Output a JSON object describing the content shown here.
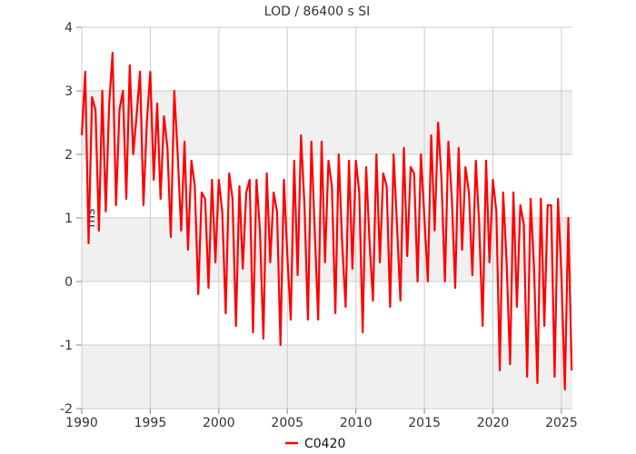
{
  "chart_data": {
    "type": "line",
    "title": "LOD / 86400 s SI",
    "xlabel": "",
    "ylabel": "ms",
    "xlim": [
      1990,
      2025.8
    ],
    "ylim": [
      -2,
      4
    ],
    "xticks": [
      1990,
      1995,
      2000,
      2005,
      2010,
      2015,
      2020,
      2025
    ],
    "yticks": [
      -2,
      -1,
      0,
      1,
      2,
      3,
      4
    ],
    "grid": true,
    "banded_background": true,
    "legend_position": "bottom-center",
    "colors": {
      "series": "#ff0000",
      "band": "#f0f0f0",
      "grid": "#cccccc"
    },
    "series": [
      {
        "name": "C0420",
        "color": "#ff0000",
        "x": [
          1990.0,
          1990.25,
          1990.5,
          1990.75,
          1991.0,
          1991.25,
          1991.5,
          1991.75,
          1992.0,
          1992.25,
          1992.5,
          1992.75,
          1993.0,
          1993.25,
          1993.5,
          1993.75,
          1994.0,
          1994.25,
          1994.5,
          1994.75,
          1995.0,
          1995.25,
          1995.5,
          1995.75,
          1996.0,
          1996.25,
          1996.5,
          1996.75,
          1997.0,
          1997.25,
          1997.5,
          1997.75,
          1998.0,
          1998.25,
          1998.5,
          1998.75,
          1999.0,
          1999.25,
          1999.5,
          1999.75,
          2000.0,
          2000.25,
          2000.5,
          2000.75,
          2001.0,
          2001.25,
          2001.5,
          2001.75,
          2002.0,
          2002.25,
          2002.5,
          2002.75,
          2003.0,
          2003.25,
          2003.5,
          2003.75,
          2004.0,
          2004.25,
          2004.5,
          2004.75,
          2005.0,
          2005.25,
          2005.5,
          2005.75,
          2006.0,
          2006.25,
          2006.5,
          2006.75,
          2007.0,
          2007.25,
          2007.5,
          2007.75,
          2008.0,
          2008.25,
          2008.5,
          2008.75,
          2009.0,
          2009.25,
          2009.5,
          2009.75,
          2010.0,
          2010.25,
          2010.5,
          2010.75,
          2011.0,
          2011.25,
          2011.5,
          2011.75,
          2012.0,
          2012.25,
          2012.5,
          2012.75,
          2013.0,
          2013.25,
          2013.5,
          2013.75,
          2014.0,
          2014.25,
          2014.5,
          2014.75,
          2015.0,
          2015.25,
          2015.5,
          2015.75,
          2016.0,
          2016.25,
          2016.5,
          2016.75,
          2017.0,
          2017.25,
          2017.5,
          2017.75,
          2018.0,
          2018.25,
          2018.5,
          2018.75,
          2019.0,
          2019.25,
          2019.5,
          2019.75,
          2020.0,
          2020.25,
          2020.5,
          2020.75,
          2021.0,
          2021.25,
          2021.5,
          2021.75,
          2022.0,
          2022.25,
          2022.5,
          2022.75,
          2023.0,
          2023.25,
          2023.5,
          2023.75,
          2024.0,
          2024.25,
          2024.5,
          2024.75,
          2025.0,
          2025.25,
          2025.5,
          2025.75
        ],
        "y": [
          2.3,
          3.3,
          0.6,
          2.9,
          2.7,
          0.8,
          3.0,
          1.1,
          2.8,
          3.6,
          1.2,
          2.7,
          3.0,
          1.3,
          3.4,
          2.0,
          2.6,
          3.3,
          1.2,
          2.5,
          3.3,
          1.6,
          2.8,
          1.3,
          2.6,
          2.1,
          0.7,
          3.0,
          2.0,
          0.8,
          2.2,
          0.5,
          1.9,
          1.5,
          -0.2,
          1.4,
          1.3,
          -0.1,
          1.6,
          0.3,
          1.6,
          1.1,
          -0.5,
          1.7,
          1.3,
          -0.7,
          1.5,
          0.2,
          1.4,
          1.6,
          -0.8,
          1.6,
          0.8,
          -0.9,
          1.7,
          0.3,
          1.4,
          1.1,
          -1.0,
          1.6,
          0.4,
          -0.6,
          1.9,
          0.1,
          2.3,
          1.2,
          -0.6,
          2.2,
          0.8,
          -0.6,
          2.2,
          0.3,
          1.9,
          1.5,
          -0.5,
          2.0,
          0.6,
          -0.4,
          1.9,
          0.2,
          1.9,
          1.4,
          -0.8,
          1.8,
          0.6,
          -0.3,
          2.0,
          0.3,
          1.7,
          1.5,
          -0.4,
          2.0,
          0.9,
          -0.3,
          2.1,
          0.4,
          1.8,
          1.7,
          0.0,
          2.0,
          1.0,
          0.0,
          2.3,
          0.8,
          2.5,
          1.6,
          0.0,
          2.2,
          1.3,
          -0.1,
          2.1,
          0.5,
          1.8,
          1.4,
          0.1,
          1.9,
          0.9,
          -0.7,
          1.9,
          0.3,
          1.6,
          1.1,
          -1.4,
          1.4,
          0.3,
          -1.3,
          1.4,
          -0.4,
          1.2,
          0.9,
          -1.5,
          1.3,
          0.2,
          -1.6,
          1.3,
          -0.7,
          1.2,
          1.2,
          -1.5,
          1.3,
          0.1,
          -1.7,
          1.0,
          -1.4
        ]
      }
    ]
  }
}
